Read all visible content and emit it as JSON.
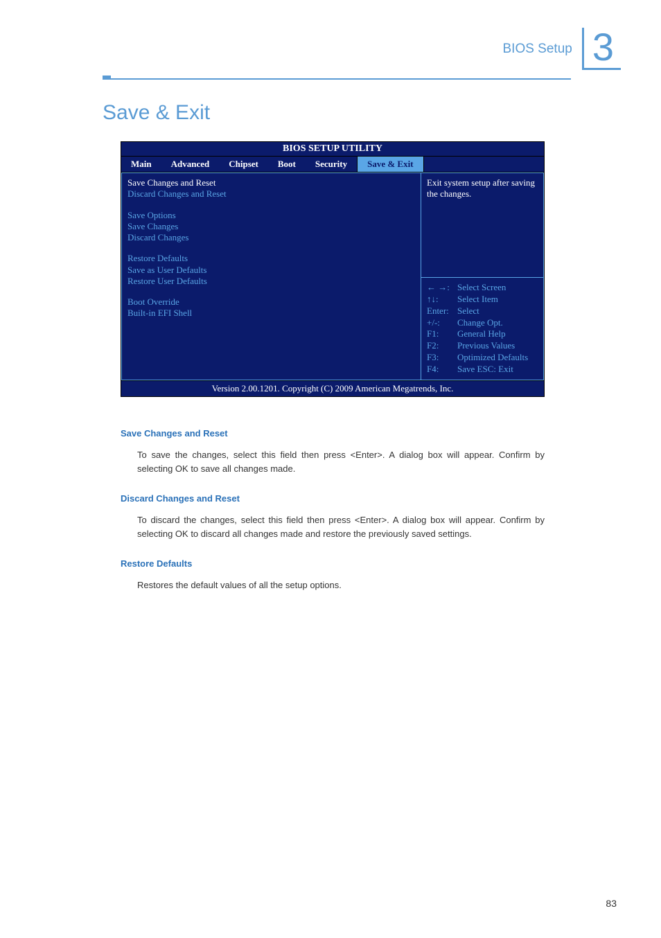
{
  "header": {
    "label": "BIOS Setup",
    "chapter": "3"
  },
  "page_title": "Save & Exit",
  "bios": {
    "title": "BIOS SETUP UTILITY",
    "tabs": [
      "Main",
      "Advanced",
      "Chipset",
      "Boot",
      "Security",
      "Save & Exit"
    ],
    "active_tab_index": 5,
    "items": {
      "sel1": "Save Changes and Reset",
      "i2": "Discard Changes and Reset",
      "g1a": "Save Options",
      "g1b": "Save Changes",
      "g1c": "Discard Changes",
      "g2a": "Restore Defaults",
      "g2b": "Save as User Defaults",
      "g2c": "Restore User Defaults",
      "g3a": "Boot Override",
      "g3b": "Built-in EFI Shell"
    },
    "desc": "Exit system setup after saving the changes.",
    "keys": [
      {
        "k": "← →:",
        "v": "Select Screen"
      },
      {
        "k": "↑↓:",
        "v": "Select Item"
      },
      {
        "k": "Enter:",
        "v": "Select"
      },
      {
        "k": "+/-:",
        "v": "Change Opt."
      },
      {
        "k": "F1:",
        "v": "General Help"
      },
      {
        "k": "F2:",
        "v": "Previous Values"
      },
      {
        "k": "F3:",
        "v": "Optimized Defaults"
      },
      {
        "k": "F4:",
        "v": "Save   ESC: Exit"
      }
    ],
    "footer": "Version 2.00.1201. Copyright (C) 2009 American Megatrends, Inc."
  },
  "sections": [
    {
      "head": "Save Changes and Reset",
      "body": "To save the changes, select this field then press <Enter>. A dialog box will appear. Confirm by selecting OK to save all changes made."
    },
    {
      "head": "Discard Changes and Reset",
      "body": "To discard the changes, select this field then press <Enter>. A dialog box will appear. Confirm by selecting OK to discard all changes made and restore the previously saved settings."
    },
    {
      "head": "Restore Defaults",
      "body": "Restores the default values of all the setup options."
    }
  ],
  "page_number": "83",
  "colors": {
    "accent": "#5a9bd4",
    "bios_bg": "#0b1b6b",
    "bios_light": "#5aa6e6",
    "section_head": "#2a71b8"
  }
}
